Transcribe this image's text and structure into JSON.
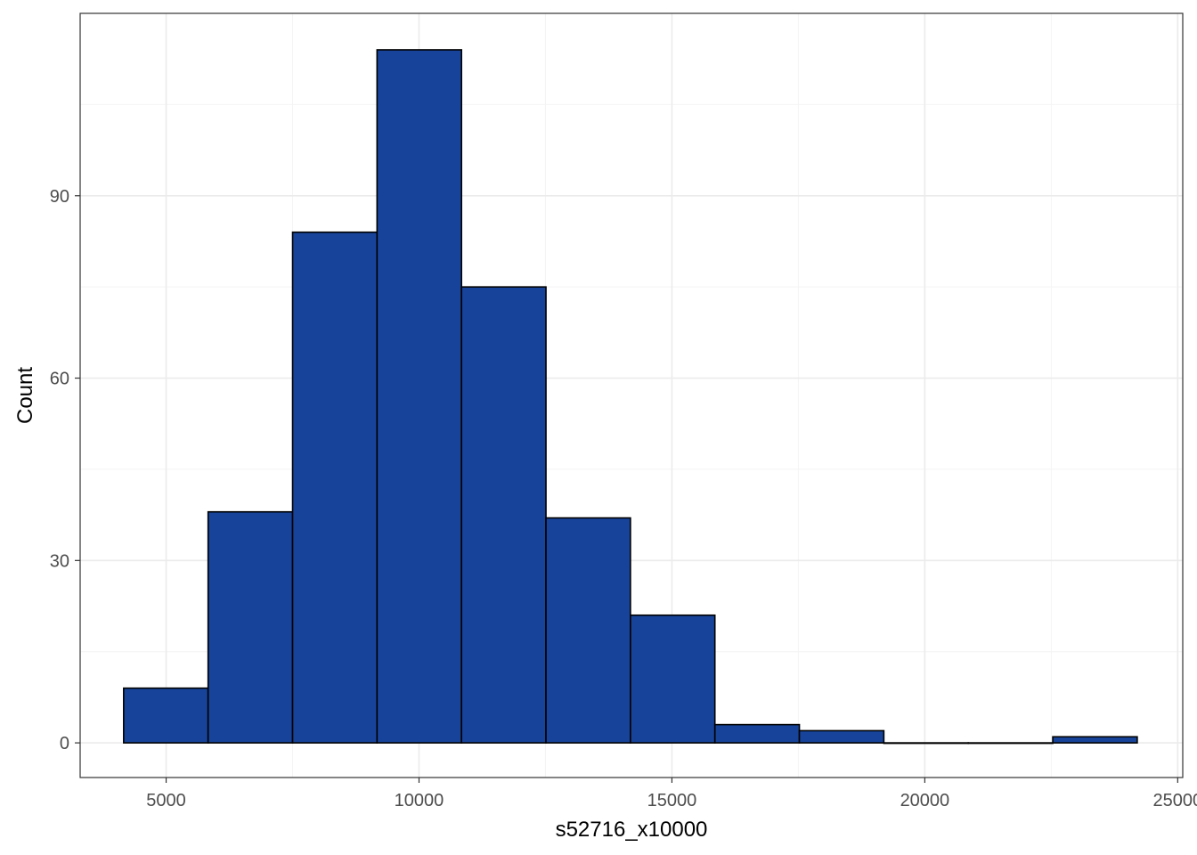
{
  "chart_data": {
    "type": "bar",
    "subtype": "histogram",
    "title": "",
    "xlabel": "s52716_x10000",
    "ylabel": "Count",
    "xlim": [
      3300,
      25100
    ],
    "ylim": [
      -5.7,
      120
    ],
    "x_ticks": [
      5000,
      10000,
      15000,
      20000,
      25000
    ],
    "x_tick_labels": [
      "5000",
      "10000",
      "15000",
      "20000",
      "25000"
    ],
    "y_ticks": [
      0,
      30,
      60,
      90
    ],
    "y_tick_labels": [
      "0",
      "30",
      "60",
      "90"
    ],
    "bins": [
      {
        "x0": 4160,
        "x1": 5830,
        "count": 9
      },
      {
        "x0": 5830,
        "x1": 7500,
        "count": 38
      },
      {
        "x0": 7500,
        "x1": 9170,
        "count": 84
      },
      {
        "x0": 9170,
        "x1": 10840,
        "count": 114
      },
      {
        "x0": 10840,
        "x1": 12510,
        "count": 75
      },
      {
        "x0": 12510,
        "x1": 14180,
        "count": 37
      },
      {
        "x0": 14180,
        "x1": 15850,
        "count": 21
      },
      {
        "x0": 15850,
        "x1": 17520,
        "count": 3
      },
      {
        "x0": 17520,
        "x1": 19190,
        "count": 2
      },
      {
        "x0": 19190,
        "x1": 20860,
        "count": 0
      },
      {
        "x0": 20860,
        "x1": 22530,
        "count": 0
      },
      {
        "x0": 22530,
        "x1": 24200,
        "count": 1
      }
    ],
    "grid": true,
    "legend": "none",
    "colors": {
      "bar_fill": "#17449a",
      "bar_stroke": "#000000",
      "grid_major": "#ebebeb",
      "grid_minor": "#f4f4f4",
      "panel_border": "#333333"
    }
  }
}
